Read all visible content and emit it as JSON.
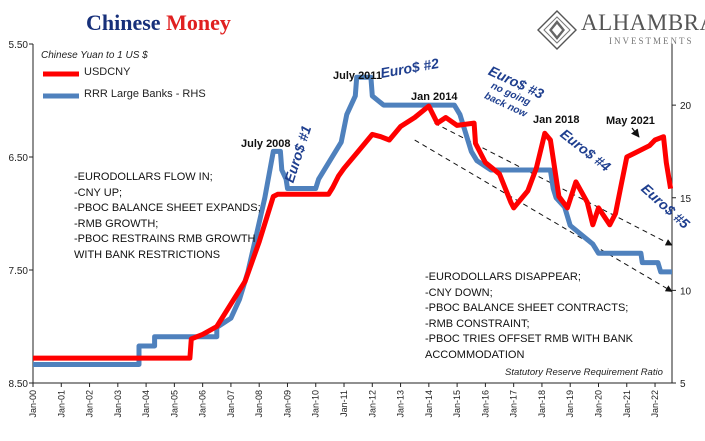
{
  "title": {
    "word1": "Chinese",
    "word2": "Money"
  },
  "logo": {
    "name": "Alhambra",
    "sub": "INVESTMENTS"
  },
  "subtitle": "Chinese Yuan to 1 US $",
  "legend": [
    {
      "label": "USDCNY",
      "color": "#ff0000"
    },
    {
      "label": "RRR Large Banks - RHS",
      "color": "#4f81bd"
    }
  ],
  "notes_left": [
    "-EURODOLLARS FLOW IN;",
    "-CNY UP;",
    "-PBOC BALANCE SHEET EXPANDS;",
    "-RMB GROWTH;",
    "-PBOC RESTRAINS RMB GROWTH",
    "WITH BANK RESTRICTIONS"
  ],
  "notes_right": [
    "-EURODOLLARS DISAPPEAR;",
    "-CNY DOWN;",
    "-PBOC BALANCE SHEET CONTRACTS;",
    "-RMB CONSTRAINT;",
    "-PBOC TRIES OFFSET RMB WITH BANK",
    "ACCOMMODATION"
  ],
  "footnote": "Statutory Reserve Requirement Ratio",
  "annotations": {
    "july2008": "July 2008",
    "july2011": "July 2011",
    "jan2014": "Jan 2014",
    "jan2018": "Jan 2018",
    "may2021": "May 2021"
  },
  "euro_labels": {
    "e1": "Euro$ #1",
    "e2": "Euro$ #2",
    "e3_line1": "Euro$ #3",
    "e3_line2": "no going",
    "e3_line3": "back now",
    "e4": "Euro$ #4",
    "e5": "Euro$ #5"
  },
  "chart_data": {
    "type": "line",
    "title": "Chinese Money",
    "x_ticks": [
      "Jan-00",
      "Jan-01",
      "Jan-02",
      "Jan-03",
      "Jan-04",
      "Jan-05",
      "Jan-06",
      "Jan-07",
      "Jan-08",
      "Jan-09",
      "Jan-10",
      "Jan-11",
      "Jan-12",
      "Jan-13",
      "Jan-14",
      "Jan-15",
      "Jan-16",
      "Jan-17",
      "Jan-18",
      "Jan-19",
      "Jan-20",
      "Jan-21",
      "Jan-22"
    ],
    "xlim": [
      2000.0,
      2022.6
    ],
    "y_left": {
      "label": "Chinese Yuan to 1 US $",
      "inverted": true,
      "lim": [
        5.5,
        8.5
      ],
      "ticks": [
        "5.50",
        "6.50",
        "7.50",
        "8.50"
      ],
      "tick_values": [
        5.5,
        6.5,
        7.5,
        8.5
      ]
    },
    "y_right": {
      "label": "Statutory Reserve Requirement Ratio",
      "lim": [
        5,
        23.3
      ],
      "ticks": [
        "5",
        "10",
        "15",
        "20"
      ],
      "tick_values": [
        5,
        10,
        15,
        20
      ]
    },
    "grid": false,
    "legend_position": "top-left",
    "series": [
      {
        "name": "USDCNY",
        "axis": "left",
        "color": "#ff0000",
        "points": [
          [
            2000.0,
            8.28
          ],
          [
            2005.55,
            8.28
          ],
          [
            2005.6,
            8.11
          ],
          [
            2006.0,
            8.07
          ],
          [
            2006.5,
            8.0
          ],
          [
            2007.0,
            7.8
          ],
          [
            2007.5,
            7.6
          ],
          [
            2008.0,
            7.25
          ],
          [
            2008.5,
            6.85
          ],
          [
            2008.65,
            6.83
          ],
          [
            2009.0,
            6.83
          ],
          [
            2009.5,
            6.83
          ],
          [
            2010.0,
            6.83
          ],
          [
            2010.45,
            6.83
          ],
          [
            2010.6,
            6.77
          ],
          [
            2010.8,
            6.67
          ],
          [
            2011.0,
            6.6
          ],
          [
            2011.5,
            6.45
          ],
          [
            2012.0,
            6.3
          ],
          [
            2012.3,
            6.32
          ],
          [
            2012.6,
            6.35
          ],
          [
            2013.0,
            6.23
          ],
          [
            2013.5,
            6.15
          ],
          [
            2014.0,
            6.05
          ],
          [
            2014.3,
            6.2
          ],
          [
            2014.6,
            6.15
          ],
          [
            2015.0,
            6.22
          ],
          [
            2015.6,
            6.2
          ],
          [
            2015.65,
            6.38
          ],
          [
            2016.0,
            6.55
          ],
          [
            2016.5,
            6.65
          ],
          [
            2016.9,
            6.9
          ],
          [
            2017.0,
            6.95
          ],
          [
            2017.5,
            6.8
          ],
          [
            2017.8,
            6.6
          ],
          [
            2018.1,
            6.29
          ],
          [
            2018.3,
            6.35
          ],
          [
            2018.6,
            6.85
          ],
          [
            2018.9,
            6.95
          ],
          [
            2019.2,
            6.72
          ],
          [
            2019.6,
            6.9
          ],
          [
            2019.8,
            7.1
          ],
          [
            2020.0,
            6.95
          ],
          [
            2020.4,
            7.1
          ],
          [
            2020.6,
            7.0
          ],
          [
            2020.8,
            6.75
          ],
          [
            2021.0,
            6.5
          ],
          [
            2021.4,
            6.45
          ],
          [
            2021.8,
            6.4
          ],
          [
            2022.0,
            6.35
          ],
          [
            2022.3,
            6.32
          ],
          [
            2022.4,
            6.55
          ],
          [
            2022.55,
            6.78
          ]
        ]
      },
      {
        "name": "RRR Large Banks - RHS",
        "axis": "right",
        "color": "#4f81bd",
        "points": [
          [
            2000.0,
            6.0
          ],
          [
            2003.75,
            6.0
          ],
          [
            2003.75,
            7.0
          ],
          [
            2004.3,
            7.0
          ],
          [
            2004.3,
            7.5
          ],
          [
            2006.5,
            7.5
          ],
          [
            2006.5,
            8.0
          ],
          [
            2007.0,
            8.5
          ],
          [
            2007.3,
            9.5
          ],
          [
            2007.6,
            11.0
          ],
          [
            2007.9,
            13.0
          ],
          [
            2008.2,
            15.0
          ],
          [
            2008.5,
            17.5
          ],
          [
            2008.75,
            17.5
          ],
          [
            2008.8,
            16.5
          ],
          [
            2008.95,
            16.0
          ],
          [
            2009.0,
            15.5
          ],
          [
            2010.0,
            15.5
          ],
          [
            2010.1,
            16.0
          ],
          [
            2010.5,
            17.0
          ],
          [
            2010.9,
            18.0
          ],
          [
            2011.1,
            19.5
          ],
          [
            2011.4,
            20.5
          ],
          [
            2011.45,
            21.5
          ],
          [
            2011.95,
            21.5
          ],
          [
            2012.0,
            20.5
          ],
          [
            2012.4,
            20.0
          ],
          [
            2014.9,
            20.0
          ],
          [
            2015.1,
            19.5
          ],
          [
            2015.3,
            18.5
          ],
          [
            2015.5,
            17.5
          ],
          [
            2015.7,
            17.0
          ],
          [
            2016.2,
            16.5
          ],
          [
            2018.3,
            16.5
          ],
          [
            2018.4,
            15.5
          ],
          [
            2018.5,
            15.0
          ],
          [
            2018.8,
            14.5
          ],
          [
            2019.0,
            13.5
          ],
          [
            2019.4,
            13.0
          ],
          [
            2019.8,
            12.5
          ],
          [
            2020.0,
            12.0
          ],
          [
            2021.5,
            12.0
          ],
          [
            2021.55,
            11.5
          ],
          [
            2022.1,
            11.5
          ],
          [
            2022.2,
            11.0
          ],
          [
            2022.6,
            11.0
          ]
        ]
      }
    ],
    "trend_arrows": [
      "upper",
      "lower"
    ]
  }
}
